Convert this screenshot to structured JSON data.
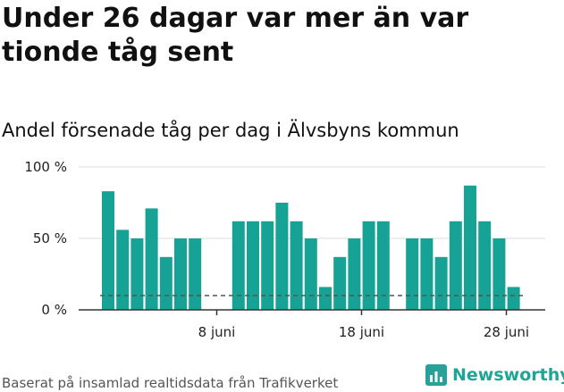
{
  "title": "Under 26 dagar var mer än var tionde tåg sent",
  "subtitle": "Andel försenade tåg per dag i Älvsbyns kommun",
  "source": "Baserat på insamlad realtidsdata från Trafikverket",
  "brand": {
    "name": "Newsworthy",
    "color": "#1fa596"
  },
  "colors": {
    "bar": "#16a294",
    "reference_line": "#555555",
    "grid": "#dddddd",
    "axis": "#333333"
  },
  "chart_data": {
    "type": "bar",
    "title": "Andel försenade tåg per dag i Älvsbyns kommun",
    "xlabel": "",
    "ylabel": "",
    "ylim": [
      0,
      100
    ],
    "y_ticks": [
      {
        "value": 0,
        "label": "0 %"
      },
      {
        "value": 50,
        "label": "50 %"
      },
      {
        "value": 100,
        "label": "100 %"
      }
    ],
    "x_ticks": [
      {
        "day": 8,
        "label": "8 juni"
      },
      {
        "day": 18,
        "label": "18 juni"
      },
      {
        "day": 28,
        "label": "28 juni"
      }
    ],
    "reference_line": 10,
    "grid": true,
    "legend": "none",
    "x": [
      1,
      2,
      3,
      4,
      5,
      6,
      7,
      8,
      9,
      10,
      11,
      12,
      13,
      14,
      15,
      16,
      17,
      18,
      19,
      20,
      21,
      22,
      23,
      24,
      25,
      26,
      27,
      28,
      29,
      30
    ],
    "values": [
      83,
      56,
      50,
      71,
      37,
      50,
      50,
      null,
      null,
      62,
      62,
      62,
      75,
      62,
      50,
      16,
      37,
      50,
      62,
      62,
      null,
      50,
      50,
      37,
      62,
      87,
      62,
      50,
      16,
      null
    ]
  }
}
